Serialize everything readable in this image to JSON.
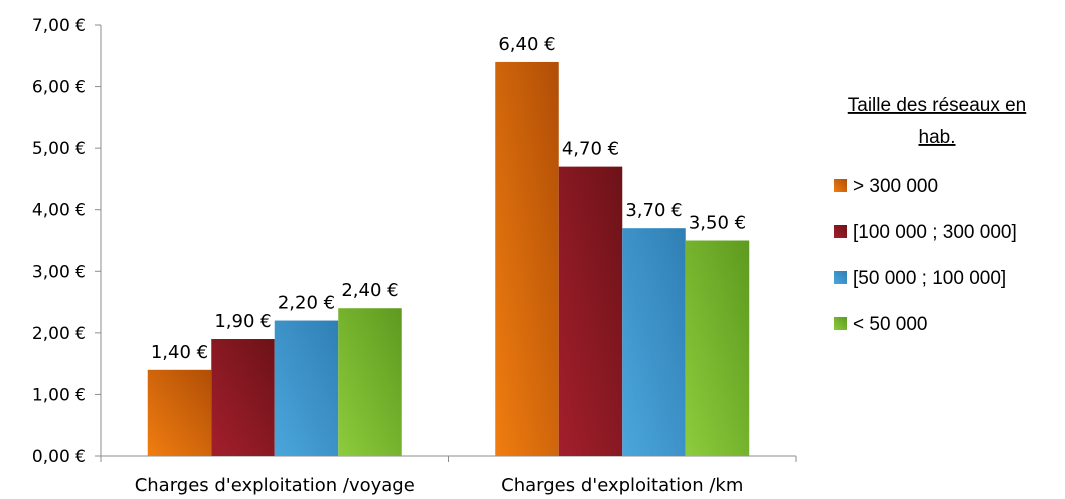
{
  "chart_data": {
    "type": "bar",
    "categories": [
      "Charges d'exploitation /voyage",
      "Charges d'exploitation /km"
    ],
    "series": [
      {
        "name": "> 300 000",
        "values": [
          1.4,
          6.4
        ],
        "value_labels": [
          "1,40 €",
          "6,40 €"
        ],
        "color": "#f07d10",
        "color_dark": "#b04e06"
      },
      {
        "name": "[100 000 ; 300 000]",
        "values": [
          1.9,
          4.7
        ],
        "value_labels": [
          "1,90 €",
          "4,70 €"
        ],
        "color": "#a31f2c",
        "color_dark": "#6d1218"
      },
      {
        "name": "[50 000 ; 100 000]",
        "values": [
          2.2,
          3.7
        ],
        "value_labels": [
          "2,20 €",
          "3,70 €"
        ],
        "color": "#4ba6dc",
        "color_dark": "#2f7fb4"
      },
      {
        "name": "< 50 000",
        "values": [
          2.4,
          3.5
        ],
        "value_labels": [
          "2,40 €",
          "3,50 €"
        ],
        "color": "#8ccc3c",
        "color_dark": "#5e9a1f"
      }
    ],
    "ylim": [
      0,
      7
    ],
    "yticks": [
      {
        "value": 0,
        "label": "0,00 €"
      },
      {
        "value": 1,
        "label": "1,00 €"
      },
      {
        "value": 2,
        "label": "2,00 €"
      },
      {
        "value": 3,
        "label": "3,00 €"
      },
      {
        "value": 4,
        "label": "4,00 €"
      },
      {
        "value": 5,
        "label": "5,00 €"
      },
      {
        "value": 6,
        "label": "6,00 €"
      },
      {
        "value": 7,
        "label": "7,00 €"
      }
    ],
    "legend": {
      "title_line1": "Taille des réseaux en",
      "title_line2": "hab.",
      "position": "right"
    },
    "grid": false,
    "title": "",
    "xlabel": "",
    "ylabel": ""
  }
}
